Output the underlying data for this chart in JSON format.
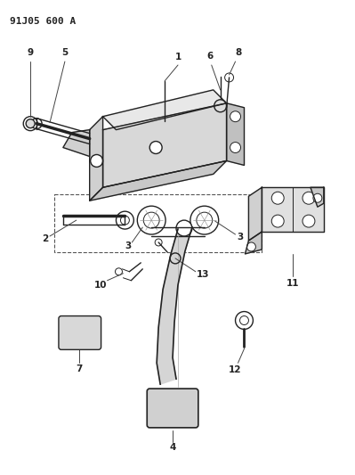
{
  "title": "91J05 600 A",
  "bg": "#ffffff",
  "lc": "#222222",
  "title_fontsize": 8,
  "label_fontsize": 7.5
}
